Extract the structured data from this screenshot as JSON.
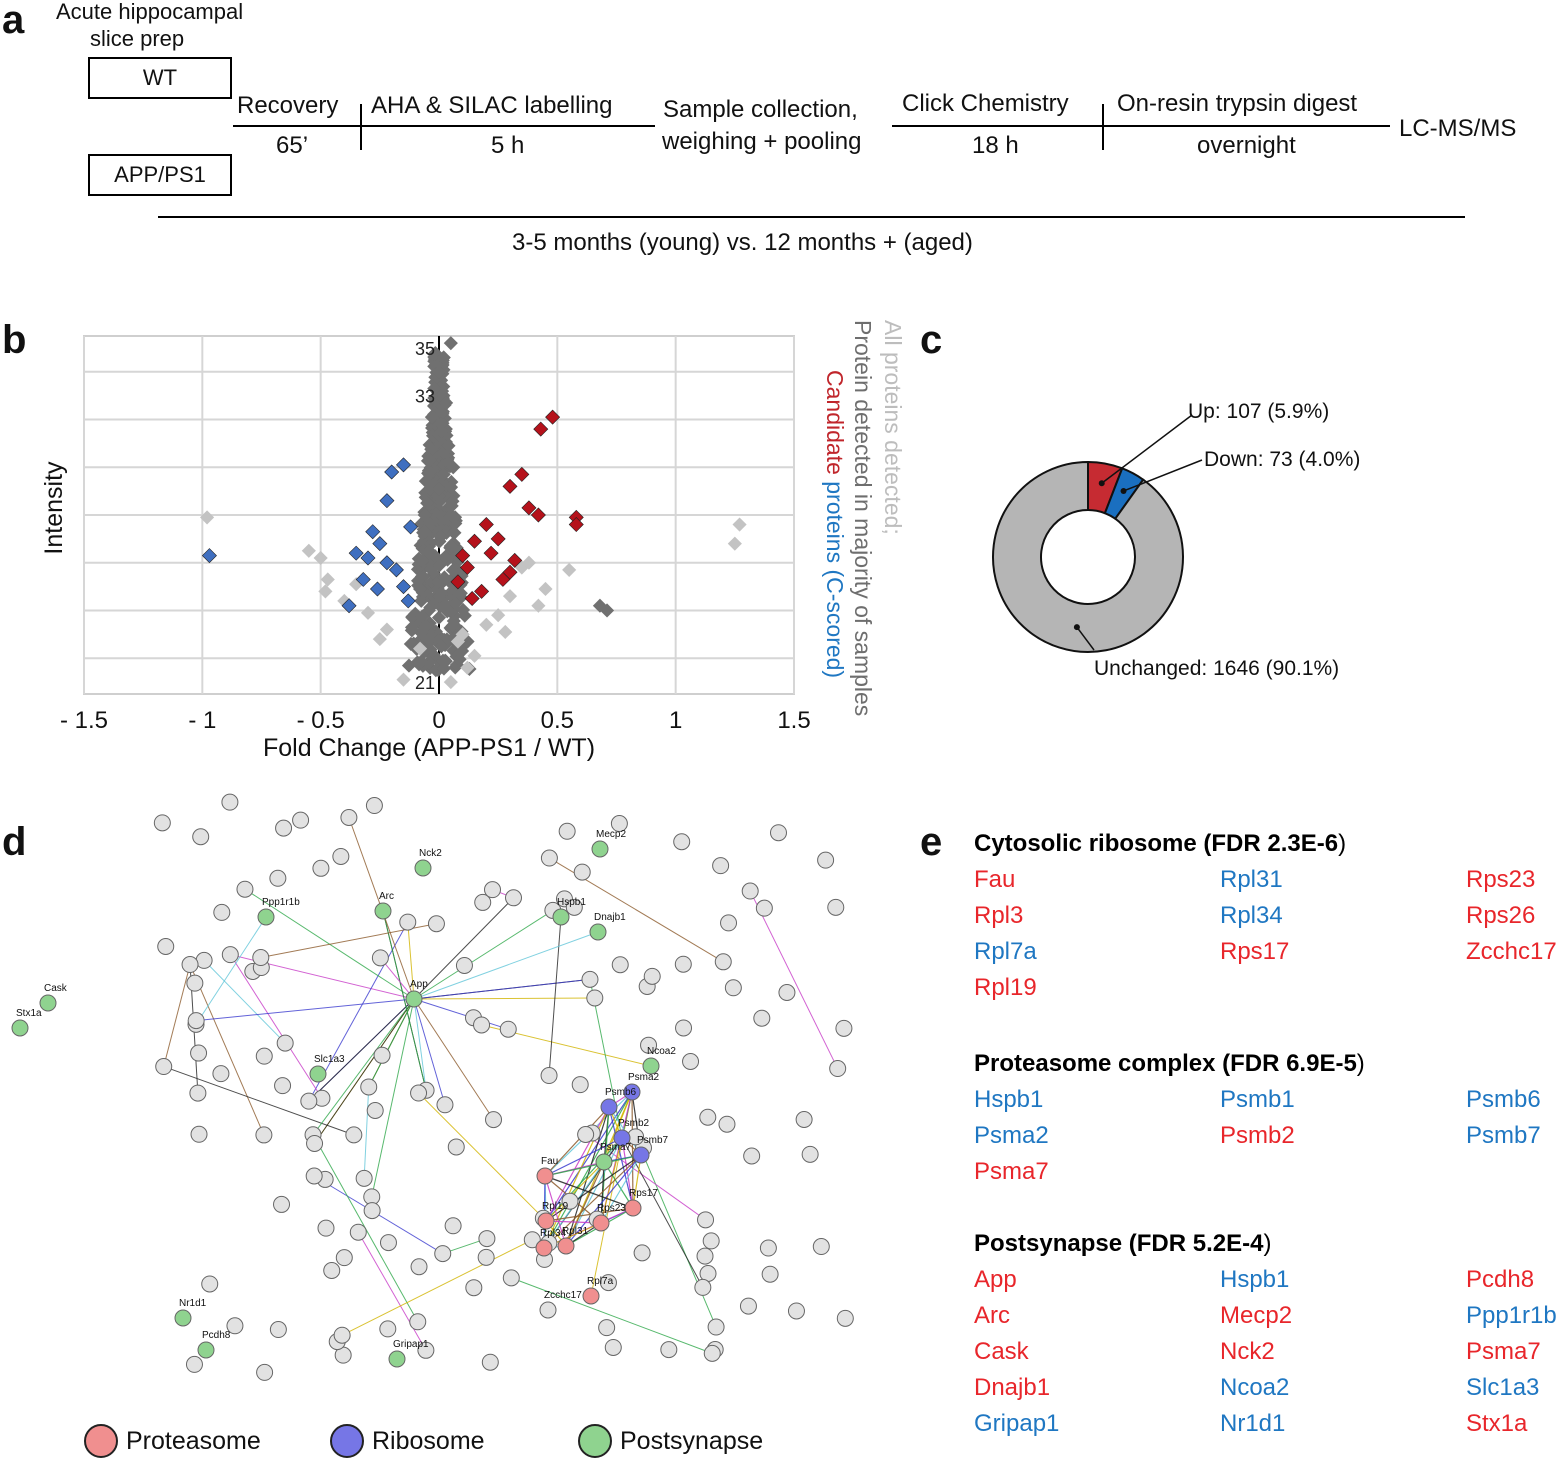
{
  "colors": {
    "red": "#e8262b",
    "blue": "#1f77c2",
    "dark_red": "#b5121b",
    "mid_blue": "#3f6fc0",
    "dark_gray": "#707070",
    "light_gray": "#c3c3c3",
    "donut_gray": "#b5b5b5",
    "donut_red": "#c62b32",
    "donut_blue": "#1a6fc0",
    "proteasome": "#f08f8f",
    "ribosome": "#7676e6",
    "postsynapse": "#8fd38f"
  },
  "panel_a": {
    "letter": "a",
    "prep_label_1": "Acute hippocampal",
    "prep_label_2": "slice prep",
    "box_wt": "WT",
    "box_app": "APP/PS1",
    "steps": {
      "recovery": "Recovery",
      "recovery_time": "65’",
      "aha": "AHA & SILAC labelling",
      "aha_time": "5 h",
      "sample_1": "Sample collection,",
      "sample_2": "weighing + pooling",
      "click": "Click Chemistry",
      "click_time": "18 h",
      "digest": "On-resin trypsin digest",
      "digest_time": "overnight",
      "lcms": "LC-MS/MS"
    },
    "age_label": "3-5 months (young) vs. 12 months + (aged)"
  },
  "panel_b": {
    "letter": "b",
    "legend_all": "All proteins detected;",
    "legend_majority": "Protein detected in majority of samples",
    "legend_candidate_1": "Candidate",
    "legend_candidate_2": "proteins",
    "legend_candidate_3": "(C-scored)"
  },
  "chart_data": [
    {
      "type": "scatter",
      "title": "",
      "xlabel": "Fold Change (APP-PS1 / WT)",
      "ylabel": "Intensity",
      "xlim": [
        -1.5,
        1.5
      ],
      "ylim": [
        20.5,
        35.5
      ],
      "x_ticks": [
        -1.5,
        -1,
        -0.5,
        0,
        0.5,
        1,
        1.5
      ],
      "x_tick_labels": [
        "- 1.5",
        "- 1",
        "- 0.5",
        "0",
        "0.5",
        "1",
        "1.5"
      ],
      "y_tick_labels_visible": [
        "35",
        "33",
        "21"
      ],
      "grid": true,
      "series": [
        {
          "name": "All proteins detected",
          "points": [
            [
              -0.98,
              27.9
            ],
            [
              1.27,
              27.6
            ],
            [
              1.25,
              26.8
            ],
            [
              -0.55,
              26.5
            ],
            [
              -0.5,
              26.2
            ],
            [
              -0.47,
              25.3
            ],
            [
              -0.48,
              24.8
            ],
            [
              0.45,
              24.9
            ],
            [
              0.42,
              24.2
            ],
            [
              0.35,
              25.8
            ],
            [
              -0.3,
              23.9
            ],
            [
              -0.22,
              23.2
            ],
            [
              0.1,
              23.0
            ],
            [
              0.2,
              23.4
            ],
            [
              0.05,
              21.0
            ],
            [
              -0.15,
              21.1
            ],
            [
              0.25,
              23.8
            ],
            [
              0.55,
              25.7
            ],
            [
              -0.08,
              22.4
            ],
            [
              0.3,
              24.6
            ],
            [
              0.15,
              22.1
            ],
            [
              -0.35,
              25.1
            ],
            [
              0.38,
              26.0
            ],
            [
              -0.25,
              22.8
            ],
            [
              0.12,
              21.6
            ],
            [
              0.28,
              23.1
            ],
            [
              -0.4,
              24.4
            ],
            [
              0.08,
              22.7
            ]
          ]
        },
        {
          "name": "Protein detected in majority of samples",
          "points": [
            [
              0.05,
              35.2
            ],
            [
              0.02,
              34.6
            ],
            [
              0.0,
              34.0
            ],
            [
              -0.02,
              33.3
            ],
            [
              0.03,
              32.7
            ],
            [
              -0.03,
              32.1
            ],
            [
              0.01,
              31.5
            ],
            [
              0.04,
              30.9
            ],
            [
              -0.04,
              30.3
            ],
            [
              0.02,
              29.7
            ],
            [
              0.0,
              29.1
            ],
            [
              -0.05,
              28.5
            ],
            [
              0.06,
              27.9
            ],
            [
              -0.06,
              27.3
            ],
            [
              0.05,
              26.7
            ],
            [
              -0.07,
              26.1
            ],
            [
              0.08,
              25.5
            ],
            [
              -0.08,
              24.9
            ],
            [
              0.07,
              24.3
            ],
            [
              0.0,
              23.7
            ],
            [
              0.01,
              22.5
            ],
            [
              0.68,
              24.2
            ],
            [
              0.71,
              24.0
            ],
            [
              0.06,
              30.0
            ],
            [
              -0.06,
              28.0
            ]
          ]
        },
        {
          "name": "Candidate proteins up (C-scored)",
          "points": [
            [
              0.48,
              32.1
            ],
            [
              0.43,
              31.6
            ],
            [
              0.58,
              27.9
            ],
            [
              0.58,
              27.6
            ],
            [
              0.42,
              28.0
            ],
            [
              0.38,
              28.3
            ],
            [
              0.35,
              29.7
            ],
            [
              0.3,
              29.2
            ],
            [
              0.2,
              27.6
            ],
            [
              0.15,
              26.9
            ],
            [
              0.22,
              26.4
            ],
            [
              0.12,
              25.8
            ],
            [
              0.27,
              25.3
            ],
            [
              0.32,
              26.1
            ],
            [
              0.18,
              24.8
            ],
            [
              0.1,
              26.3
            ],
            [
              0.08,
              25.2
            ],
            [
              0.25,
              27.0
            ],
            [
              0.14,
              24.5
            ],
            [
              0.3,
              25.6
            ]
          ]
        },
        {
          "name": "Candidate proteins down (C-scored)",
          "points": [
            [
              -0.97,
              26.3
            ],
            [
              -0.15,
              30.1
            ],
            [
              -0.2,
              29.8
            ],
            [
              -0.22,
              28.6
            ],
            [
              -0.28,
              27.3
            ],
            [
              -0.25,
              26.8
            ],
            [
              -0.3,
              26.2
            ],
            [
              -0.18,
              25.7
            ],
            [
              -0.32,
              25.3
            ],
            [
              -0.26,
              24.9
            ],
            [
              -0.13,
              24.4
            ],
            [
              -0.38,
              24.2
            ],
            [
              -0.22,
              26.0
            ],
            [
              -0.15,
              25.0
            ],
            [
              -0.35,
              26.4
            ],
            [
              -0.12,
              27.5
            ]
          ]
        }
      ]
    },
    {
      "type": "pie",
      "title": "",
      "donut": true,
      "slices": [
        {
          "label": "Up",
          "value": 107,
          "percent": 5.9,
          "display": "Up: 107 (5.9%)"
        },
        {
          "label": "Down",
          "value": 73,
          "percent": 4.0,
          "display": "Down: 73 (4.0%)"
        },
        {
          "label": "Unchanged",
          "value": 1646,
          "percent": 90.1,
          "display": "Unchanged: 1646 (90.1%)"
        }
      ]
    }
  ],
  "panel_c": {
    "letter": "c"
  },
  "panel_d": {
    "letter": "d",
    "legend": [
      {
        "label": "Proteasome",
        "color_key": "proteasome"
      },
      {
        "label": "Ribosome",
        "color_key": "ribosome"
      },
      {
        "label": "Postsynapse",
        "color_key": "postsynapse"
      }
    ],
    "node_labels": [
      "Cask",
      "Stx1a",
      "Ppp1r1b",
      "Arc",
      "Nck2",
      "Mecp2",
      "Hspb1",
      "Dnajb1",
      "App",
      "Slc1a3",
      "Ncoa2",
      "Psma2",
      "Psmb6",
      "Psmb2",
      "Psma7",
      "Psmb7",
      "Fau",
      "Rps17",
      "Rpl19",
      "Rps23",
      "Rpl34",
      "Rpl31",
      "Rpl7a",
      "Nr1d1",
      "Pcdh8",
      "Gripap1",
      "Zcchc17"
    ]
  },
  "panel_e": {
    "letter": "e",
    "groups": [
      {
        "title": "Cytosolic ribosome (FDR 2.3E-6",
        "close": ")",
        "genes": [
          {
            "name": "Fau",
            "dir": "up"
          },
          {
            "name": "Rpl31",
            "dir": "down"
          },
          {
            "name": "Rps23",
            "dir": "up"
          },
          {
            "name": "Rpl3",
            "dir": "up"
          },
          {
            "name": "Rpl34",
            "dir": "down"
          },
          {
            "name": "Rps26",
            "dir": "up"
          },
          {
            "name": "Rpl7a",
            "dir": "down"
          },
          {
            "name": "Rps17",
            "dir": "up"
          },
          {
            "name": "Zcchc17",
            "dir": "up"
          },
          {
            "name": "Rpl19",
            "dir": "up"
          }
        ]
      },
      {
        "title": "Proteasome complex (FDR 6.9E-5",
        "close": ")",
        "genes": [
          {
            "name": "Hspb1",
            "dir": "down"
          },
          {
            "name": "Psmb1",
            "dir": "down"
          },
          {
            "name": "Psmb6",
            "dir": "down"
          },
          {
            "name": "Psma2",
            "dir": "down"
          },
          {
            "name": "Psmb2",
            "dir": "up"
          },
          {
            "name": "Psmb7",
            "dir": "down"
          },
          {
            "name": "Psma7",
            "dir": "up"
          }
        ]
      },
      {
        "title": "Postsynapse (FDR 5.2E-4",
        "close": ")",
        "genes": [
          {
            "name": "App",
            "dir": "up"
          },
          {
            "name": "Hspb1",
            "dir": "down"
          },
          {
            "name": "Pcdh8",
            "dir": "up"
          },
          {
            "name": "Arc",
            "dir": "up"
          },
          {
            "name": "Mecp2",
            "dir": "up"
          },
          {
            "name": "Ppp1r1b",
            "dir": "down"
          },
          {
            "name": "Cask",
            "dir": "up"
          },
          {
            "name": "Nck2",
            "dir": "up"
          },
          {
            "name": "Psma7",
            "dir": "up"
          },
          {
            "name": "Dnajb1",
            "dir": "up"
          },
          {
            "name": "Ncoa2",
            "dir": "down"
          },
          {
            "name": "Slc1a3",
            "dir": "down"
          },
          {
            "name": "Gripap1",
            "dir": "down"
          },
          {
            "name": "Nr1d1",
            "dir": "down"
          },
          {
            "name": "Stx1a",
            "dir": "up"
          }
        ]
      }
    ]
  }
}
